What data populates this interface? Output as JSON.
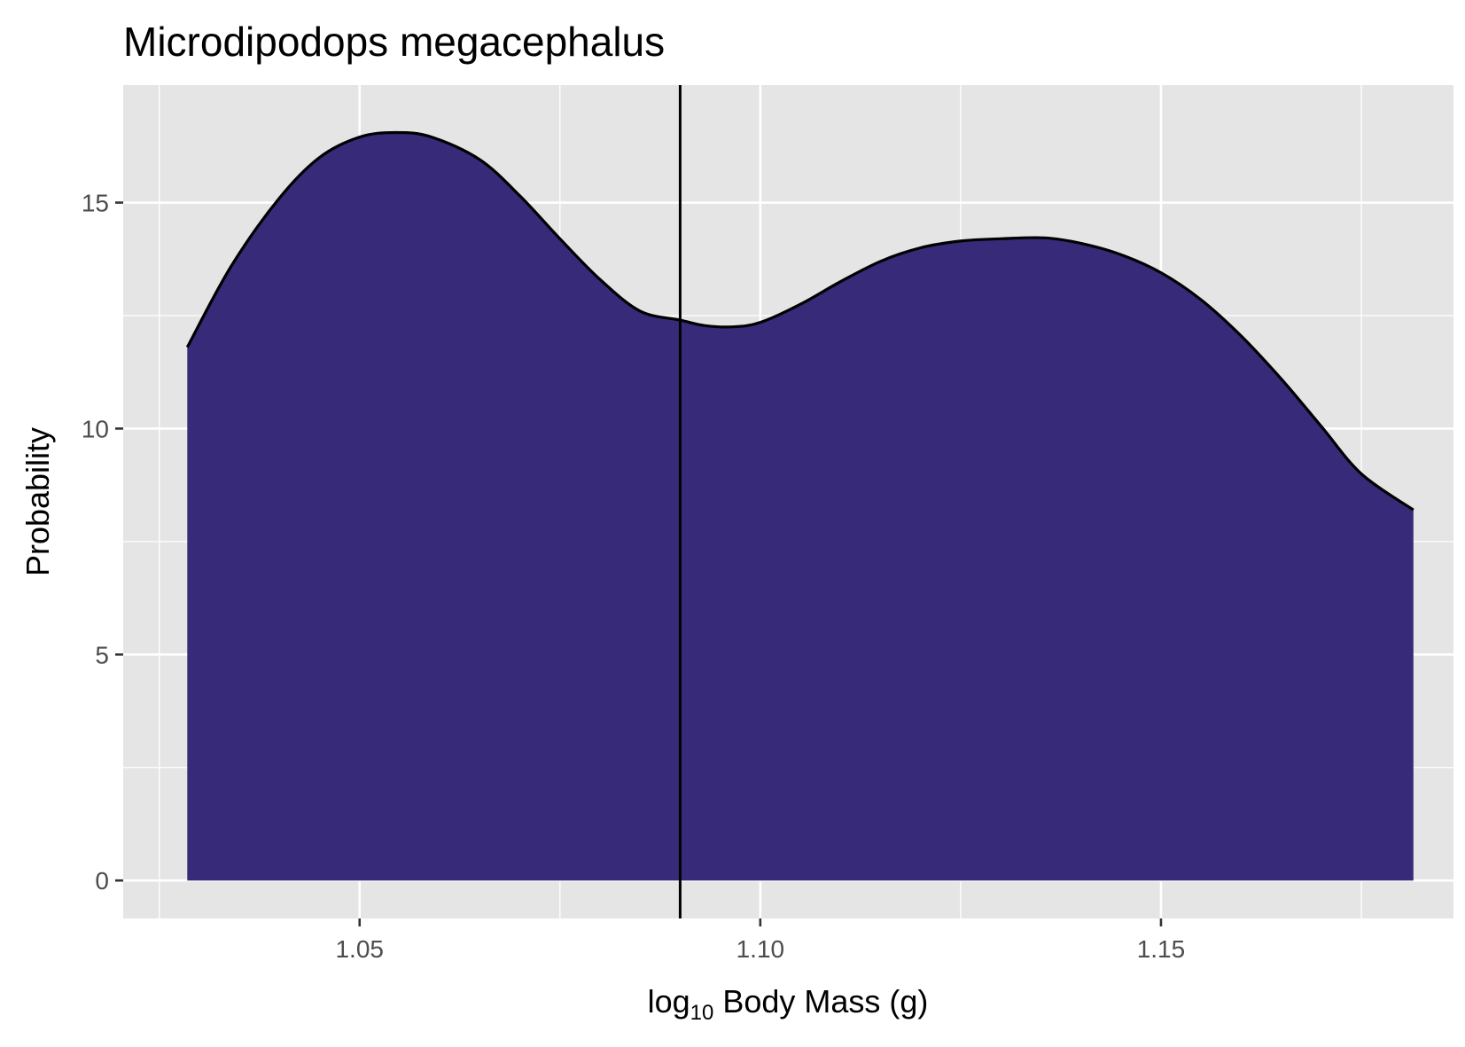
{
  "chart_data": {
    "type": "area",
    "title": "Microdipodops megacephalus",
    "xlabel": {
      "base": "log",
      "subscript": "10",
      "rest": " Body Mass (g)"
    },
    "ylabel": "Probability",
    "xlim": [
      1.0205,
      1.1865
    ],
    "ylim": [
      -0.84,
      17.6
    ],
    "x_ticks": [
      1.05,
      1.1,
      1.15
    ],
    "x_tick_labels": [
      "1.05",
      "1.10",
      "1.15"
    ],
    "x_minor_ticks": [
      1.025,
      1.075,
      1.125,
      1.175
    ],
    "y_ticks": [
      0,
      5,
      10,
      15
    ],
    "y_tick_labels": [
      "0",
      "5",
      "10",
      "15"
    ],
    "y_minor_ticks": [
      2.5,
      7.5,
      12.5
    ],
    "grid": true,
    "series": [
      {
        "x": [
          1.0285,
          1.034,
          1.04,
          1.045,
          1.05,
          1.0545,
          1.059,
          1.065,
          1.07,
          1.075,
          1.08,
          1.085,
          1.09,
          1.093,
          1.0965,
          1.1,
          1.105,
          1.11,
          1.115,
          1.12,
          1.125,
          1.13,
          1.1355,
          1.14,
          1.145,
          1.15,
          1.155,
          1.16,
          1.165,
          1.17,
          1.175,
          1.1815
        ],
        "y": [
          11.8,
          13.6,
          15.1,
          16.0,
          16.45,
          16.55,
          16.45,
          15.95,
          15.15,
          14.2,
          13.3,
          12.6,
          12.4,
          12.28,
          12.25,
          12.35,
          12.75,
          13.25,
          13.7,
          14.0,
          14.15,
          14.2,
          14.22,
          14.1,
          13.85,
          13.45,
          12.85,
          12.05,
          11.1,
          10.05,
          9.0,
          8.2
        ]
      }
    ],
    "vline": 1.09,
    "colors": {
      "fill": "#372a79",
      "line": "#000000",
      "panel": "#e5e5e5",
      "grid": "#ffffff"
    }
  }
}
